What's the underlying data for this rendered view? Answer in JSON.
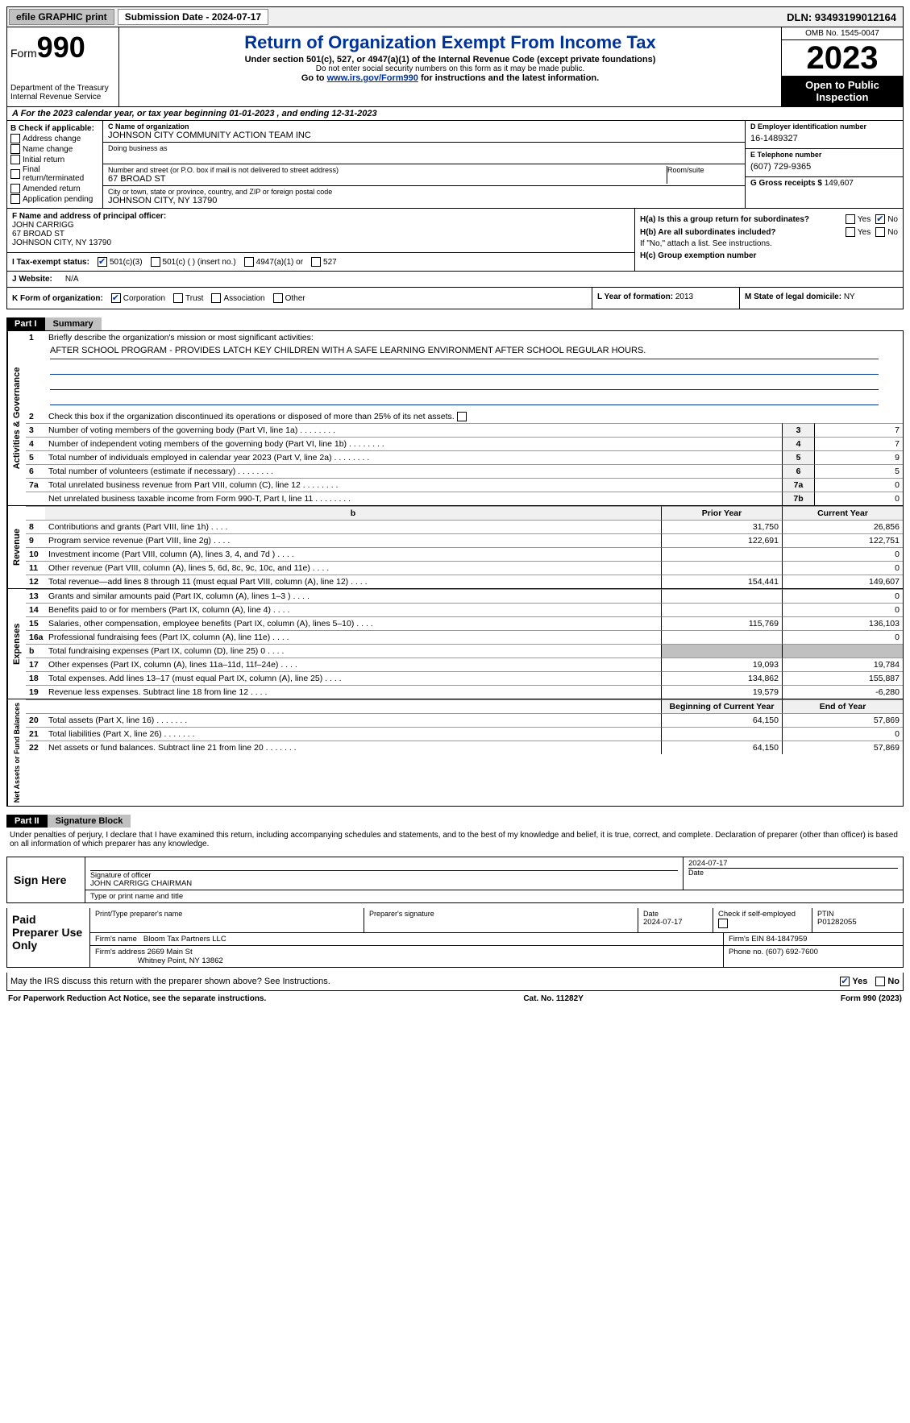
{
  "topbar": {
    "efile": "efile GRAPHIC print",
    "submission": "Submission Date - 2024-07-17",
    "dln": "DLN: 93493199012164"
  },
  "header": {
    "form_label": "Form",
    "form_num": "990",
    "dept": "Department of the Treasury Internal Revenue Service",
    "title": "Return of Organization Exempt From Income Tax",
    "sub1": "Under section 501(c), 527, or 4947(a)(1) of the Internal Revenue Code (except private foundations)",
    "sub2": "Do not enter social security numbers on this form as it may be made public.",
    "sub3_pre": "Go to ",
    "sub3_link": "www.irs.gov/Form990",
    "sub3_post": " for instructions and the latest information.",
    "omb": "OMB No. 1545-0047",
    "year": "2023",
    "inspect": "Open to Public Inspection"
  },
  "taxyear": "A For the 2023 calendar year, or tax year beginning 01-01-2023   , and ending 12-31-2023",
  "B": {
    "title": "B Check if applicable:",
    "opts": [
      "Address change",
      "Name change",
      "Initial return",
      "Final return/terminated",
      "Amended return",
      "Application pending"
    ]
  },
  "C": {
    "name_lbl": "C Name of organization",
    "name": "JOHNSON CITY COMMUNITY ACTION TEAM INC",
    "dba_lbl": "Doing business as",
    "addr_lbl": "Number and street (or P.O. box if mail is not delivered to street address)",
    "addr": "67 BROAD ST",
    "room_lbl": "Room/suite",
    "city_lbl": "City or town, state or province, country, and ZIP or foreign postal code",
    "city": "JOHNSON CITY, NY  13790"
  },
  "D": {
    "lbl": "D Employer identification number",
    "val": "16-1489327"
  },
  "E": {
    "lbl": "E Telephone number",
    "val": "(607) 729-9365"
  },
  "G": {
    "lbl": "G Gross receipts $",
    "val": "149,607"
  },
  "F": {
    "lbl": "F  Name and address of principal officer:",
    "name": "JOHN CARRIGG",
    "addr1": "67 BROAD ST",
    "addr2": "JOHNSON CITY, NY  13790"
  },
  "H": {
    "a": "H(a)  Is this a group return for subordinates?",
    "b": "H(b)  Are all subordinates included?",
    "b_note": "If \"No,\" attach a list. See instructions.",
    "c": "H(c)  Group exemption number",
    "yes": "Yes",
    "no": "No"
  },
  "I": {
    "lbl": "I   Tax-exempt status:",
    "o1": "501(c)(3)",
    "o2": "501(c) (  ) (insert no.)",
    "o3": "4947(a)(1) or",
    "o4": "527"
  },
  "J": {
    "lbl": "J   Website:",
    "val": "N/A"
  },
  "K": {
    "lbl": "K Form of organization:",
    "o1": "Corporation",
    "o2": "Trust",
    "o3": "Association",
    "o4": "Other"
  },
  "L": {
    "lbl": "L Year of formation:",
    "val": "2013"
  },
  "M": {
    "lbl": "M State of legal domicile:",
    "val": "NY"
  },
  "part1": {
    "hdr": "Part I",
    "title": "Summary",
    "l1": "Briefly describe the organization's mission or most significant activities:",
    "mission": "AFTER SCHOOL PROGRAM - PROVIDES LATCH KEY CHILDREN WITH A SAFE LEARNING ENVIRONMENT AFTER SCHOOL REGULAR HOURS.",
    "l2": "Check this box       if the organization discontinued its operations or disposed of more than 25% of its net assets.",
    "gov_lines": [
      {
        "n": "3",
        "t": "Number of voting members of the governing body (Part VI, line 1a)",
        "k": "3",
        "v": "7"
      },
      {
        "n": "4",
        "t": "Number of independent voting members of the governing body (Part VI, line 1b)",
        "k": "4",
        "v": "7"
      },
      {
        "n": "5",
        "t": "Total number of individuals employed in calendar year 2023 (Part V, line 2a)",
        "k": "5",
        "v": "9"
      },
      {
        "n": "6",
        "t": "Total number of volunteers (estimate if necessary)",
        "k": "6",
        "v": "5"
      },
      {
        "n": "7a",
        "t": "Total unrelated business revenue from Part VIII, column (C), line 12",
        "k": "7a",
        "v": "0"
      },
      {
        "n": "",
        "t": "Net unrelated business taxable income from Form 990-T, Part I, line 11",
        "k": "7b",
        "v": "0"
      }
    ],
    "rev_hdr": {
      "py": "Prior Year",
      "cy": "Current Year"
    },
    "rev_lines": [
      {
        "n": "8",
        "t": "Contributions and grants (Part VIII, line 1h)",
        "py": "31,750",
        "cy": "26,856"
      },
      {
        "n": "9",
        "t": "Program service revenue (Part VIII, line 2g)",
        "py": "122,691",
        "cy": "122,751"
      },
      {
        "n": "10",
        "t": "Investment income (Part VIII, column (A), lines 3, 4, and 7d )",
        "py": "",
        "cy": "0"
      },
      {
        "n": "11",
        "t": "Other revenue (Part VIII, column (A), lines 5, 6d, 8c, 9c, 10c, and 11e)",
        "py": "",
        "cy": "0"
      },
      {
        "n": "12",
        "t": "Total revenue—add lines 8 through 11 (must equal Part VIII, column (A), line 12)",
        "py": "154,441",
        "cy": "149,607"
      }
    ],
    "exp_lines": [
      {
        "n": "13",
        "t": "Grants and similar amounts paid (Part IX, column (A), lines 1–3 )",
        "py": "",
        "cy": "0"
      },
      {
        "n": "14",
        "t": "Benefits paid to or for members (Part IX, column (A), line 4)",
        "py": "",
        "cy": "0"
      },
      {
        "n": "15",
        "t": "Salaries, other compensation, employee benefits (Part IX, column (A), lines 5–10)",
        "py": "115,769",
        "cy": "136,103"
      },
      {
        "n": "16a",
        "t": "Professional fundraising fees (Part IX, column (A), line 11e)",
        "py": "",
        "cy": "0"
      },
      {
        "n": "b",
        "t": "Total fundraising expenses (Part IX, column (D), line 25) 0",
        "py": "shade",
        "cy": "shade"
      },
      {
        "n": "17",
        "t": "Other expenses (Part IX, column (A), lines 11a–11d, 11f–24e)",
        "py": "19,093",
        "cy": "19,784"
      },
      {
        "n": "18",
        "t": "Total expenses. Add lines 13–17 (must equal Part IX, column (A), line 25)",
        "py": "134,862",
        "cy": "155,887"
      },
      {
        "n": "19",
        "t": "Revenue less expenses. Subtract line 18 from line 12",
        "py": "19,579",
        "cy": "-6,280"
      }
    ],
    "na_hdr": {
      "py": "Beginning of Current Year",
      "cy": "End of Year"
    },
    "na_lines": [
      {
        "n": "20",
        "t": "Total assets (Part X, line 16)",
        "py": "64,150",
        "cy": "57,869"
      },
      {
        "n": "21",
        "t": "Total liabilities (Part X, line 26)",
        "py": "",
        "cy": "0"
      },
      {
        "n": "22",
        "t": "Net assets or fund balances. Subtract line 21 from line 20",
        "py": "64,150",
        "cy": "57,869"
      }
    ],
    "vlabels": {
      "gov": "Activities & Governance",
      "rev": "Revenue",
      "exp": "Expenses",
      "na": "Net Assets or Fund Balances"
    }
  },
  "part2": {
    "hdr": "Part II",
    "title": "Signature Block",
    "decl": "Under penalties of perjury, I declare that I have examined this return, including accompanying schedules and statements, and to the best of my knowledge and belief, it is true, correct, and complete. Declaration of preparer (other than officer) is based on all information of which preparer has any knowledge.",
    "sign_here": "Sign Here",
    "sig_officer_lbl": "Signature of officer",
    "sig_officer": "JOHN CARRIGG  CHAIRMAN",
    "sig_type_lbl": "Type or print name and title",
    "sig_date_lbl": "Date",
    "sig_date": "2024-07-17",
    "paid": "Paid Preparer Use Only",
    "prep_name_lbl": "Print/Type preparer's name",
    "prep_sig_lbl": "Preparer's signature",
    "prep_date_lbl": "Date",
    "prep_date": "2024-07-17",
    "self_emp": "Check       if self-employed",
    "ptin_lbl": "PTIN",
    "ptin": "P01282055",
    "firm_name_lbl": "Firm's name",
    "firm_name": "Bloom Tax Partners LLC",
    "firm_ein_lbl": "Firm's EIN",
    "firm_ein": "84-1847959",
    "firm_addr_lbl": "Firm's address",
    "firm_addr1": "2669 Main St",
    "firm_addr2": "Whitney Point, NY  13862",
    "phone_lbl": "Phone no.",
    "phone": "(607) 692-7600",
    "discuss": "May the IRS discuss this return with the preparer shown above? See Instructions.",
    "yes": "Yes",
    "no": "No"
  },
  "footer": {
    "left": "For Paperwork Reduction Act Notice, see the separate instructions.",
    "mid": "Cat. No. 11282Y",
    "right": "Form 990 (2023)"
  }
}
